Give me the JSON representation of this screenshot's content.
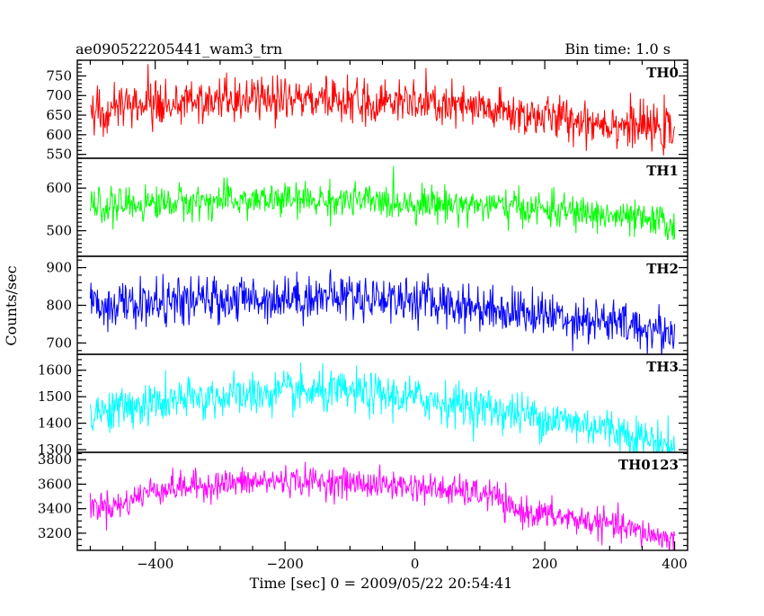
{
  "header": {
    "title": "ae090522205441_wam3_trn",
    "bin_time": "Bin time: 1.0 s"
  },
  "chart_data": {
    "type": "line",
    "title": "ae090522205441_wam3_trn",
    "xlabel": "Time [sec] 0 = 2009/05/22 20:54:41",
    "ylabel": "Counts/sec",
    "xlim": [
      -520,
      420
    ],
    "x_ticks_major": [
      -400,
      -200,
      0,
      200,
      400
    ],
    "x_tick_labels": [
      "−400",
      "−200",
      "0",
      "200",
      "400"
    ],
    "x_range": [
      -500,
      400
    ],
    "bin_time_s": 1.0,
    "legend": "none",
    "grid": false,
    "panels": [
      {
        "name": "TH0",
        "color": "#ff0000",
        "ylim": [
          540,
          790
        ],
        "y_ticks": [
          550,
          600,
          650,
          700,
          750
        ],
        "trend": [
          [
            -500,
            665
          ],
          [
            -400,
            680
          ],
          [
            -300,
            685
          ],
          [
            -200,
            690
          ],
          [
            -100,
            688
          ],
          [
            0,
            680
          ],
          [
            100,
            665
          ],
          [
            200,
            645
          ],
          [
            300,
            630
          ],
          [
            400,
            610
          ]
        ],
        "noise_sd": 28
      },
      {
        "name": "TH1",
        "color": "#00ff00",
        "ylim": [
          440,
          670
        ],
        "y_ticks": [
          500,
          600
        ],
        "trend": [
          [
            -500,
            555
          ],
          [
            -400,
            565
          ],
          [
            -300,
            570
          ],
          [
            -200,
            572
          ],
          [
            -100,
            570
          ],
          [
            0,
            565
          ],
          [
            100,
            560
          ],
          [
            200,
            550
          ],
          [
            300,
            535
          ],
          [
            400,
            515
          ]
        ],
        "noise_sd": 20
      },
      {
        "name": "TH2",
        "color": "#0000ff",
        "ylim": [
          670,
          930
        ],
        "y_ticks": [
          700,
          800,
          900
        ],
        "trend": [
          [
            -500,
            800
          ],
          [
            -400,
            805
          ],
          [
            -300,
            815
          ],
          [
            -200,
            820
          ],
          [
            -100,
            825
          ],
          [
            0,
            815
          ],
          [
            100,
            795
          ],
          [
            200,
            775
          ],
          [
            300,
            755
          ],
          [
            400,
            725
          ]
        ],
        "noise_sd": 30
      },
      {
        "name": "TH3",
        "color": "#00ffff",
        "ylim": [
          1290,
          1660
        ],
        "y_ticks": [
          1300,
          1400,
          1500,
          1600
        ],
        "y_tick_labels": [
          "1300",
          "1400",
          "1500",
          "1600"
        ],
        "trend": [
          [
            -500,
            1440
          ],
          [
            -400,
            1475
          ],
          [
            -300,
            1500
          ],
          [
            -200,
            1515
          ],
          [
            -100,
            1515
          ],
          [
            0,
            1495
          ],
          [
            100,
            1460
          ],
          [
            200,
            1420
          ],
          [
            300,
            1380
          ],
          [
            400,
            1310
          ]
        ],
        "noise_sd": 40
      },
      {
        "name": "TH0123",
        "color": "#ff00ff",
        "ylim": [
          3060,
          3860
        ],
        "y_ticks": [
          3200,
          3400,
          3600,
          3800
        ],
        "trend": [
          [
            -500,
            3420
          ],
          [
            -450,
            3430
          ],
          [
            -420,
            3520
          ],
          [
            -400,
            3560
          ],
          [
            -300,
            3600
          ],
          [
            -200,
            3630
          ],
          [
            -100,
            3610
          ],
          [
            0,
            3580
          ],
          [
            100,
            3520
          ],
          [
            125,
            3510
          ],
          [
            140,
            3400
          ],
          [
            200,
            3350
          ],
          [
            300,
            3270
          ],
          [
            400,
            3140
          ]
        ],
        "noise_sd": 60
      }
    ]
  }
}
